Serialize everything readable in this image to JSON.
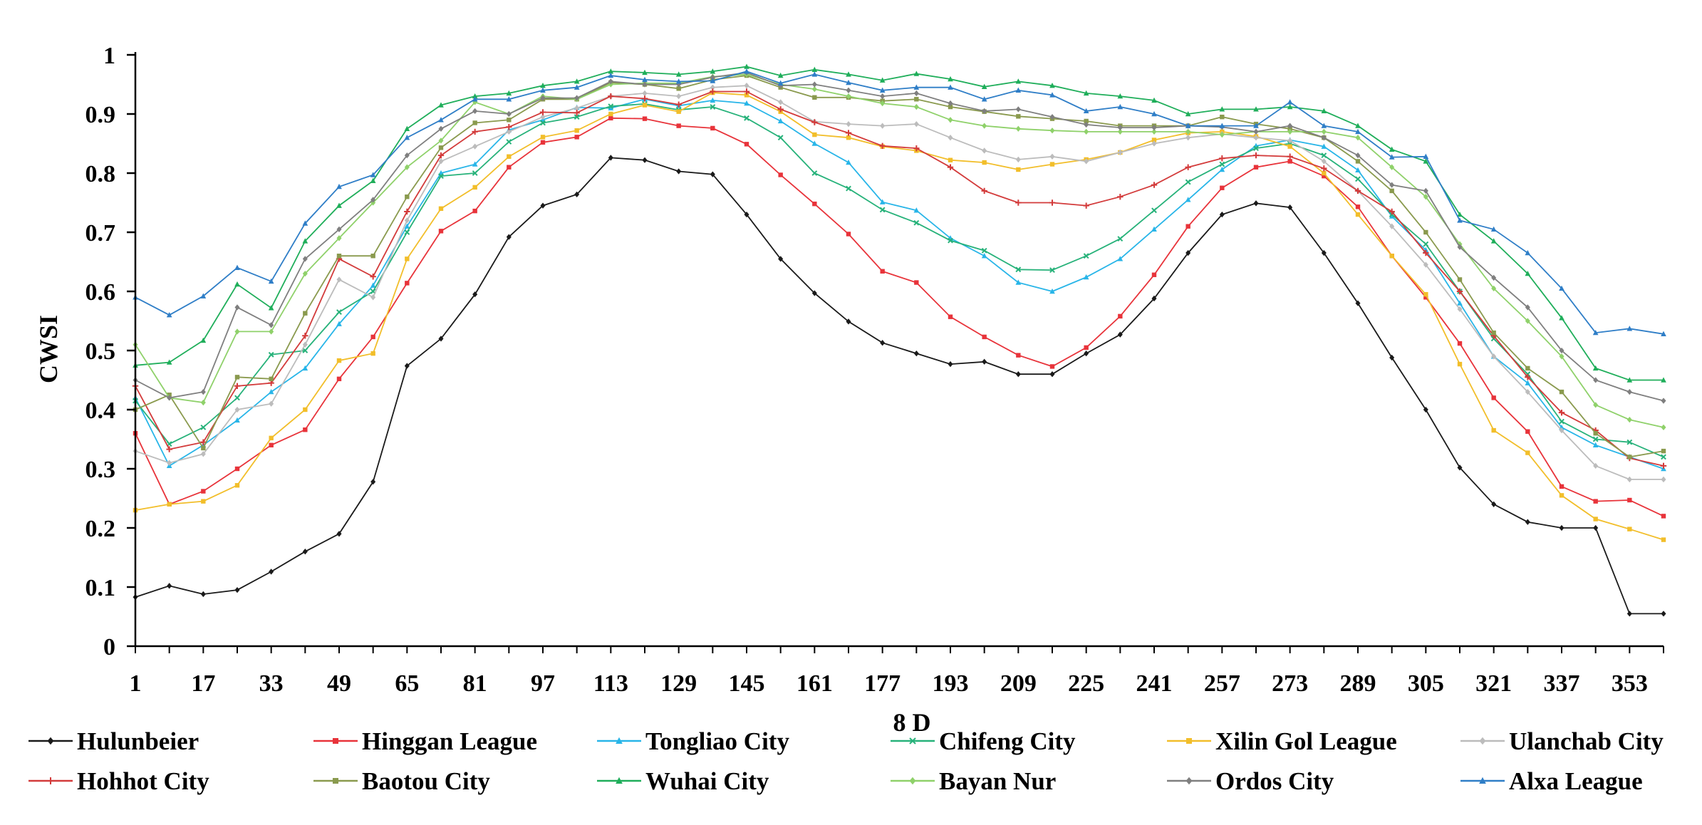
{
  "chart_data": {
    "type": "line",
    "title": "",
    "xlabel": "8 D",
    "ylabel": "CWSI",
    "x": [
      1,
      9,
      17,
      25,
      33,
      41,
      49,
      57,
      65,
      73,
      81,
      89,
      97,
      105,
      113,
      121,
      129,
      137,
      145,
      153,
      161,
      169,
      177,
      185,
      193,
      201,
      209,
      217,
      225,
      233,
      241,
      249,
      257,
      265,
      273,
      281,
      289,
      297,
      305,
      313,
      321,
      329,
      337,
      345,
      353,
      361
    ],
    "x_ticks": [
      1,
      17,
      33,
      49,
      65,
      81,
      97,
      113,
      129,
      145,
      161,
      177,
      193,
      209,
      225,
      241,
      257,
      273,
      289,
      305,
      321,
      337,
      353
    ],
    "y_ticks": [
      0,
      0.1,
      0.2,
      0.3,
      0.4,
      0.5,
      0.6,
      0.7,
      0.8,
      0.9,
      1
    ],
    "y_tick_labels": [
      "0",
      "0.1",
      "0.2",
      "0.3",
      "0.4",
      "0.5",
      "0.6",
      "0.7",
      "0.8",
      "0.9",
      "1"
    ],
    "xlim": [
      1,
      361
    ],
    "ylim": [
      0,
      1
    ],
    "grid": false,
    "legend_placement": "bottom",
    "series": [
      {
        "name": "Hulunbeier",
        "color": "#1a1a1a",
        "marker": "diamond",
        "values": [
          0.083,
          0.102,
          0.088,
          0.095,
          0.126,
          0.16,
          0.19,
          0.278,
          0.474,
          0.52,
          0.595,
          0.692,
          0.745,
          0.764,
          0.826,
          0.822,
          0.803,
          0.798,
          0.73,
          0.655,
          0.597,
          0.549,
          0.513,
          0.495,
          0.477,
          0.481,
          0.46,
          0.46,
          0.495,
          0.527,
          0.588,
          0.665,
          0.73,
          0.749,
          0.742,
          0.665,
          0.58,
          0.488,
          0.4,
          0.302,
          0.24,
          0.21,
          0.2,
          0.2,
          0.055,
          0.055
        ]
      },
      {
        "name": "Hinggan League",
        "color": "#e8333a",
        "marker": "square",
        "values": [
          0.36,
          0.24,
          0.262,
          0.3,
          0.34,
          0.366,
          0.452,
          0.523,
          0.614,
          0.702,
          0.736,
          0.81,
          0.852,
          0.861,
          0.893,
          0.892,
          0.88,
          0.876,
          0.849,
          0.797,
          0.748,
          0.697,
          0.634,
          0.615,
          0.557,
          0.523,
          0.492,
          0.473,
          0.505,
          0.558,
          0.628,
          0.71,
          0.775,
          0.81,
          0.82,
          0.795,
          0.743,
          0.66,
          0.59,
          0.512,
          0.42,
          0.363,
          0.27,
          0.245,
          0.247,
          0.22
        ]
      },
      {
        "name": "Tongliao City",
        "color": "#28b5e8",
        "marker": "triangle",
        "values": [
          0.42,
          0.305,
          0.34,
          0.382,
          0.43,
          0.47,
          0.545,
          0.61,
          0.71,
          0.8,
          0.815,
          0.873,
          0.89,
          0.911,
          0.91,
          0.925,
          0.914,
          0.923,
          0.918,
          0.888,
          0.85,
          0.818,
          0.751,
          0.737,
          0.69,
          0.66,
          0.615,
          0.6,
          0.624,
          0.655,
          0.705,
          0.755,
          0.806,
          0.846,
          0.856,
          0.845,
          0.805,
          0.727,
          0.67,
          0.58,
          0.49,
          0.445,
          0.37,
          0.34,
          0.32,
          0.3
        ]
      },
      {
        "name": "Chifeng City",
        "color": "#27b27a",
        "marker": "x",
        "values": [
          0.415,
          0.342,
          0.37,
          0.42,
          0.493,
          0.5,
          0.565,
          0.6,
          0.7,
          0.795,
          0.8,
          0.853,
          0.885,
          0.895,
          0.913,
          0.917,
          0.907,
          0.912,
          0.893,
          0.86,
          0.8,
          0.774,
          0.738,
          0.716,
          0.686,
          0.669,
          0.637,
          0.636,
          0.66,
          0.689,
          0.737,
          0.785,
          0.815,
          0.842,
          0.85,
          0.83,
          0.79,
          0.73,
          0.68,
          0.6,
          0.52,
          0.46,
          0.38,
          0.35,
          0.345,
          0.32
        ]
      },
      {
        "name": "Xilin Gol League",
        "color": "#f2be2a",
        "marker": "square",
        "values": [
          0.23,
          0.24,
          0.245,
          0.272,
          0.352,
          0.4,
          0.483,
          0.495,
          0.655,
          0.74,
          0.776,
          0.828,
          0.861,
          0.872,
          0.9,
          0.915,
          0.904,
          0.936,
          0.932,
          0.904,
          0.865,
          0.86,
          0.845,
          0.838,
          0.822,
          0.818,
          0.806,
          0.815,
          0.823,
          0.835,
          0.856,
          0.868,
          0.87,
          0.862,
          0.845,
          0.8,
          0.73,
          0.66,
          0.595,
          0.477,
          0.365,
          0.327,
          0.255,
          0.215,
          0.198,
          0.18
        ]
      },
      {
        "name": "Ulanchab City",
        "color": "#bcbcbc",
        "marker": "diamond",
        "values": [
          0.33,
          0.31,
          0.325,
          0.4,
          0.41,
          0.51,
          0.62,
          0.59,
          0.72,
          0.82,
          0.845,
          0.87,
          0.895,
          0.91,
          0.93,
          0.935,
          0.93,
          0.945,
          0.948,
          0.92,
          0.887,
          0.883,
          0.88,
          0.883,
          0.86,
          0.838,
          0.823,
          0.828,
          0.82,
          0.835,
          0.85,
          0.86,
          0.866,
          0.86,
          0.855,
          0.82,
          0.77,
          0.71,
          0.645,
          0.57,
          0.49,
          0.43,
          0.365,
          0.305,
          0.282,
          0.282
        ]
      },
      {
        "name": "Hohhot City",
        "color": "#d33b3b",
        "marker": "plus",
        "values": [
          0.44,
          0.333,
          0.345,
          0.44,
          0.445,
          0.525,
          0.655,
          0.625,
          0.735,
          0.83,
          0.87,
          0.878,
          0.903,
          0.902,
          0.93,
          0.926,
          0.916,
          0.938,
          0.938,
          0.908,
          0.886,
          0.868,
          0.846,
          0.842,
          0.81,
          0.77,
          0.75,
          0.75,
          0.745,
          0.76,
          0.78,
          0.81,
          0.825,
          0.83,
          0.828,
          0.808,
          0.77,
          0.735,
          0.665,
          0.6,
          0.525,
          0.455,
          0.395,
          0.365,
          0.318,
          0.305
        ]
      },
      {
        "name": "Baotou City",
        "color": "#8a9a4e",
        "marker": "square",
        "values": [
          0.4,
          0.425,
          0.335,
          0.455,
          0.452,
          0.563,
          0.66,
          0.66,
          0.76,
          0.843,
          0.885,
          0.89,
          0.925,
          0.925,
          0.953,
          0.95,
          0.943,
          0.958,
          0.965,
          0.945,
          0.928,
          0.928,
          0.922,
          0.925,
          0.912,
          0.904,
          0.896,
          0.892,
          0.888,
          0.88,
          0.88,
          0.88,
          0.895,
          0.883,
          0.875,
          0.86,
          0.82,
          0.77,
          0.7,
          0.62,
          0.53,
          0.47,
          0.43,
          0.36,
          0.32,
          0.33
        ]
      },
      {
        "name": "Wuhai City",
        "color": "#1fae5a",
        "marker": "triangle",
        "values": [
          0.475,
          0.48,
          0.517,
          0.612,
          0.572,
          0.685,
          0.745,
          0.787,
          0.875,
          0.915,
          0.93,
          0.935,
          0.948,
          0.955,
          0.972,
          0.97,
          0.967,
          0.972,
          0.98,
          0.965,
          0.975,
          0.967,
          0.957,
          0.968,
          0.959,
          0.946,
          0.955,
          0.948,
          0.935,
          0.93,
          0.923,
          0.9,
          0.908,
          0.908,
          0.912,
          0.905,
          0.88,
          0.84,
          0.82,
          0.73,
          0.685,
          0.63,
          0.555,
          0.47,
          0.45,
          0.45
        ]
      },
      {
        "name": "Bayan Nur",
        "color": "#8fd16a",
        "marker": "diamond",
        "values": [
          0.51,
          0.42,
          0.412,
          0.532,
          0.532,
          0.63,
          0.69,
          0.75,
          0.81,
          0.855,
          0.92,
          0.9,
          0.93,
          0.925,
          0.95,
          0.952,
          0.952,
          0.963,
          0.967,
          0.95,
          0.942,
          0.93,
          0.918,
          0.912,
          0.89,
          0.88,
          0.875,
          0.872,
          0.87,
          0.87,
          0.87,
          0.87,
          0.865,
          0.87,
          0.87,
          0.87,
          0.86,
          0.81,
          0.76,
          0.68,
          0.605,
          0.55,
          0.49,
          0.408,
          0.383,
          0.37
        ]
      },
      {
        "name": "Ordos City",
        "color": "#7f7f7f",
        "marker": "diamond",
        "values": [
          0.45,
          0.42,
          0.43,
          0.573,
          0.543,
          0.655,
          0.705,
          0.755,
          0.83,
          0.875,
          0.905,
          0.9,
          0.927,
          0.927,
          0.955,
          0.95,
          0.95,
          0.962,
          0.97,
          0.948,
          0.95,
          0.94,
          0.93,
          0.935,
          0.918,
          0.905,
          0.908,
          0.895,
          0.882,
          0.877,
          0.877,
          0.88,
          0.878,
          0.87,
          0.88,
          0.86,
          0.83,
          0.78,
          0.77,
          0.675,
          0.623,
          0.573,
          0.5,
          0.45,
          0.43,
          0.415
        ]
      },
      {
        "name": "Alxa League",
        "color": "#2f7ec7",
        "marker": "triangle",
        "values": [
          0.59,
          0.56,
          0.592,
          0.64,
          0.617,
          0.715,
          0.777,
          0.797,
          0.86,
          0.89,
          0.925,
          0.925,
          0.94,
          0.945,
          0.965,
          0.958,
          0.955,
          0.956,
          0.972,
          0.952,
          0.967,
          0.953,
          0.94,
          0.945,
          0.945,
          0.925,
          0.94,
          0.932,
          0.905,
          0.912,
          0.9,
          0.88,
          0.88,
          0.88,
          0.92,
          0.88,
          0.87,
          0.827,
          0.828,
          0.72,
          0.705,
          0.665,
          0.605,
          0.53,
          0.537,
          0.528
        ]
      }
    ]
  }
}
